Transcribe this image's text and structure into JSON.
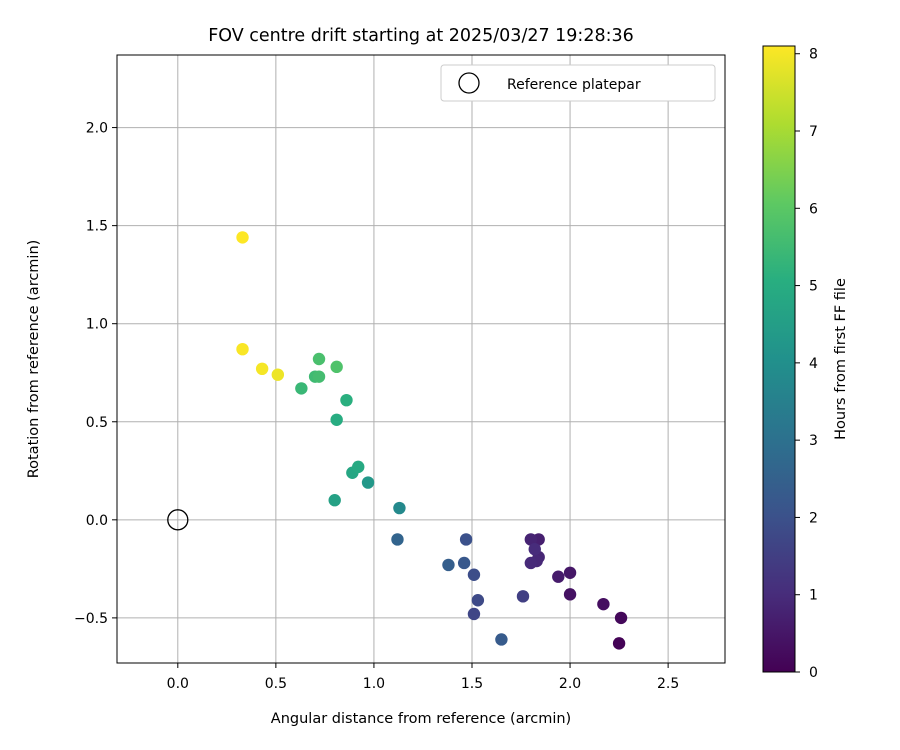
{
  "chart_data": {
    "type": "scatter",
    "title": "FOV centre drift starting at 2025/03/27 19:28:36",
    "xlabel": "Angular distance from reference (arcmin)",
    "ylabel": "Rotation from reference (arcmin)",
    "xlim": [
      -0.31,
      2.79
    ],
    "ylim": [
      -0.73,
      2.37
    ],
    "xticks": [
      0.0,
      0.5,
      1.0,
      1.5,
      2.0,
      2.5
    ],
    "xtick_labels": [
      "0.0",
      "0.5",
      "1.0",
      "1.5",
      "2.0",
      "2.5"
    ],
    "yticks": [
      -0.5,
      0.0,
      0.5,
      1.0,
      1.5,
      2.0
    ],
    "ytick_labels": [
      "−0.5",
      "0.0",
      "0.5",
      "1.0",
      "1.5",
      "2.0"
    ],
    "grid": true,
    "legend": {
      "location": "upper right",
      "entries": [
        "Reference platepar"
      ]
    },
    "colorbar": {
      "label": "Hours from first FF file",
      "colormap": "viridis",
      "range": [
        0,
        8.1
      ],
      "ticks": [
        0,
        1,
        2,
        3,
        4,
        5,
        6,
        7,
        8
      ],
      "tick_labels": [
        "0",
        "1",
        "2",
        "3",
        "4",
        "5",
        "6",
        "7",
        "8"
      ]
    },
    "reference_point": {
      "x": 0.0,
      "y": 0.0,
      "style": "hollow black circle"
    },
    "points": [
      {
        "x": 2.25,
        "y": -0.63,
        "t": 0.05
      },
      {
        "x": 2.26,
        "y": -0.5,
        "t": 0.15
      },
      {
        "x": 2.17,
        "y": -0.43,
        "t": 0.3
      },
      {
        "x": 2.0,
        "y": -0.38,
        "t": 0.4
      },
      {
        "x": 2.0,
        "y": -0.27,
        "t": 0.5
      },
      {
        "x": 1.94,
        "y": -0.29,
        "t": 0.6
      },
      {
        "x": 1.84,
        "y": -0.1,
        "t": 0.7
      },
      {
        "x": 1.8,
        "y": -0.1,
        "t": 0.8
      },
      {
        "x": 1.84,
        "y": -0.19,
        "t": 0.85
      },
      {
        "x": 1.83,
        "y": -0.21,
        "t": 0.9
      },
      {
        "x": 1.8,
        "y": -0.22,
        "t": 0.95
      },
      {
        "x": 1.82,
        "y": -0.15,
        "t": 1.0
      },
      {
        "x": 1.76,
        "y": -0.39,
        "t": 1.5
      },
      {
        "x": 1.51,
        "y": -0.48,
        "t": 1.7
      },
      {
        "x": 1.53,
        "y": -0.41,
        "t": 1.8
      },
      {
        "x": 1.51,
        "y": -0.28,
        "t": 1.9
      },
      {
        "x": 1.47,
        "y": -0.1,
        "t": 2.0
      },
      {
        "x": 1.46,
        "y": -0.22,
        "t": 2.2
      },
      {
        "x": 1.65,
        "y": -0.61,
        "t": 2.3
      },
      {
        "x": 1.38,
        "y": -0.23,
        "t": 2.4
      },
      {
        "x": 1.12,
        "y": -0.1,
        "t": 2.6
      },
      {
        "x": 1.13,
        "y": 0.06,
        "t": 3.8
      },
      {
        "x": 0.97,
        "y": 0.19,
        "t": 4.3
      },
      {
        "x": 0.8,
        "y": 0.1,
        "t": 4.6
      },
      {
        "x": 0.89,
        "y": 0.24,
        "t": 4.8
      },
      {
        "x": 0.92,
        "y": 0.27,
        "t": 4.9
      },
      {
        "x": 0.81,
        "y": 0.51,
        "t": 5.0
      },
      {
        "x": 0.86,
        "y": 0.61,
        "t": 5.1
      },
      {
        "x": 0.63,
        "y": 0.67,
        "t": 5.4
      },
      {
        "x": 0.7,
        "y": 0.73,
        "t": 5.5
      },
      {
        "x": 0.72,
        "y": 0.73,
        "t": 5.6
      },
      {
        "x": 0.72,
        "y": 0.82,
        "t": 5.7
      },
      {
        "x": 0.81,
        "y": 0.78,
        "t": 5.8
      },
      {
        "x": 0.51,
        "y": 0.74,
        "t": 7.9
      },
      {
        "x": 0.43,
        "y": 0.77,
        "t": 8.0
      },
      {
        "x": 0.33,
        "y": 0.87,
        "t": 8.05
      },
      {
        "x": 0.33,
        "y": 1.44,
        "t": 8.1
      }
    ]
  }
}
